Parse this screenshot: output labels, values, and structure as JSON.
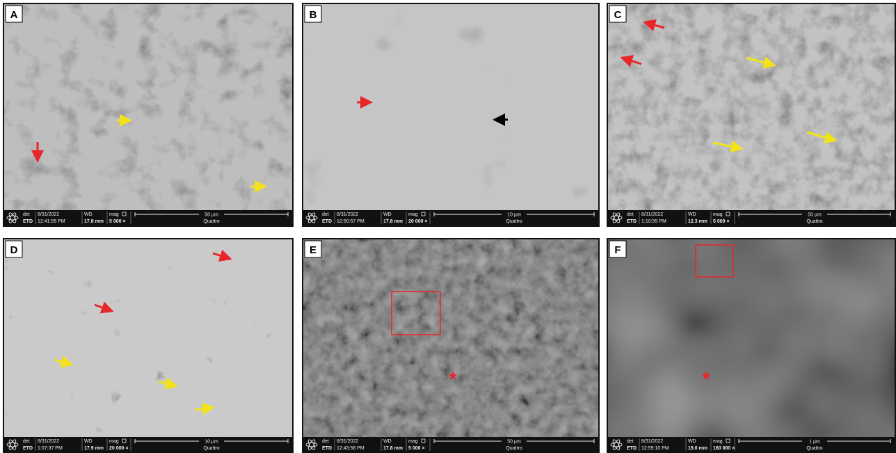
{
  "panels": [
    {
      "label": "A",
      "det_label": "det",
      "detector": "ETD",
      "date": "8/31/2022",
      "time": "12:41:55 PM",
      "wd_label": "WD",
      "wd": "17.8 mm",
      "mag_label": "mag",
      "mag": "5 000 ×",
      "scale": "50 µm",
      "instrument": "Quattro"
    },
    {
      "label": "B",
      "det_label": "det",
      "detector": "ETD",
      "date": "8/31/2022",
      "time": "12:50:57 PM",
      "wd_label": "WD",
      "wd": "17.8 mm",
      "mag_label": "mag",
      "mag": "20 000 ×",
      "scale": "10 µm",
      "instrument": "Quattro"
    },
    {
      "label": "C",
      "det_label": "det",
      "detector": "ETD",
      "date": "8/31/2022",
      "time": "1:10:55 PM",
      "wd_label": "WD",
      "wd": "12.3 mm",
      "mag_label": "mag",
      "mag": "5 000 ×",
      "scale": "50 µm",
      "instrument": "Quattro"
    },
    {
      "label": "D",
      "det_label": "det",
      "detector": "ETD",
      "date": "8/31/2022",
      "time": "1:07:37 PM",
      "wd_label": "WD",
      "wd": "17.9 mm",
      "mag_label": "mag",
      "mag": "20 000 ×",
      "scale": "10 µm",
      "instrument": "Quattro"
    },
    {
      "label": "E",
      "det_label": "det",
      "detector": "ETD",
      "date": "8/31/2022",
      "time": "12:43:58 PM",
      "wd_label": "WD",
      "wd": "17.8 mm",
      "mag_label": "mag",
      "mag": "5 000 ×",
      "scale": "50 µm",
      "instrument": "Quattro"
    },
    {
      "label": "F",
      "det_label": "det",
      "detector": "ETD",
      "date": "8/31/2022",
      "time": "12:59:10 PM",
      "wd_label": "WD",
      "wd": "19.0 mm",
      "mag_label": "mag",
      "mag": "160 000 ×",
      "scale": "1 µm",
      "instrument": "Quattro"
    }
  ]
}
